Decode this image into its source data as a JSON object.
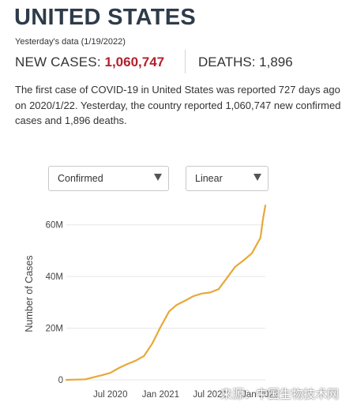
{
  "header": {
    "title": "UNITED STATES",
    "subtitle": "Yesterday's data (1/19/2022)",
    "new_cases_label": "NEW CASES:",
    "new_cases_value": "1,060,747",
    "deaths_label": "DEATHS:",
    "deaths_value": "1,896"
  },
  "summary": "The first case of COVID-19 in United States was reported 727 days ago on 2020/1/22. Yesterday, the country reported 1,060,747 new confirmed cases and 1,896 deaths.",
  "controls": {
    "metric_selected": "Confirmed",
    "scale_selected": "Linear"
  },
  "colors": {
    "line": "#e8a838",
    "cases_value": "#b3202b",
    "title": "#2e3b49"
  },
  "watermark": "来源：中国生物技术网",
  "chart_data": {
    "type": "line",
    "title": "",
    "xlabel": "",
    "ylabel": "Number of Cases",
    "scale": "linear",
    "grid": "horizontal",
    "ylim": [
      0,
      70000000
    ],
    "yticks": [
      0,
      20000000,
      40000000,
      60000000
    ],
    "ytick_labels": [
      "0",
      "20M",
      "40M",
      "60M"
    ],
    "xlim": [
      "2020-01-22",
      "2022-01-19"
    ],
    "xticks": [
      "2020-07-01",
      "2021-01-01",
      "2021-07-01",
      "2022-01-01"
    ],
    "xtick_labels": [
      "Jul 2020",
      "Jan 2021",
      "Jul 2021",
      "Jan 2022"
    ],
    "series": [
      {
        "name": "",
        "x": [
          "2020-01-22",
          "2020-03-01",
          "2020-04-01",
          "2020-05-01",
          "2020-06-01",
          "2020-07-01",
          "2020-08-01",
          "2020-09-01",
          "2020-10-01",
          "2020-11-01",
          "2020-12-01",
          "2021-01-01",
          "2021-02-01",
          "2021-03-01",
          "2021-04-01",
          "2021-05-01",
          "2021-06-01",
          "2021-07-01",
          "2021-08-01",
          "2021-09-01",
          "2021-10-01",
          "2021-11-01",
          "2021-12-01",
          "2022-01-01",
          "2022-01-10",
          "2022-01-19"
        ],
        "values": [
          0,
          100000,
          200000,
          1000000,
          1800000,
          2700000,
          4600000,
          6100000,
          7400000,
          9200000,
          14000000,
          20500000,
          26500000,
          29000000,
          30700000,
          32400000,
          33400000,
          33800000,
          35100000,
          39500000,
          43800000,
          46300000,
          49000000,
          55000000,
          62000000,
          67500000
        ]
      }
    ]
  }
}
